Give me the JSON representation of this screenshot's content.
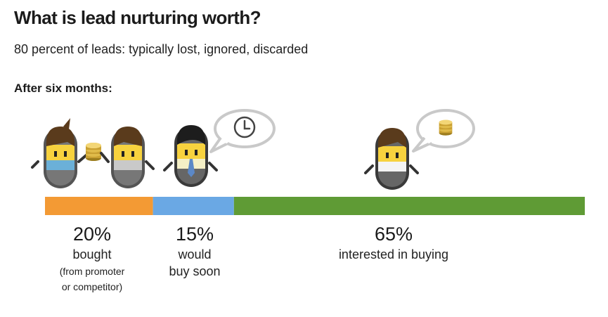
{
  "header": {
    "title": "What is lead nurturing worth?",
    "subtitle": "80 percent of leads: typically lost, ignored, discarded",
    "section_label": "After six months:"
  },
  "chart_data": {
    "type": "bar",
    "orientation": "horizontal-stacked",
    "categories": [
      "bought",
      "would buy soon",
      "interested in buying"
    ],
    "values": [
      20,
      15,
      65
    ],
    "value_labels": [
      "20%",
      "15%",
      "65%"
    ],
    "label_lines": [
      [
        "bought"
      ],
      [
        "would",
        "buy soon"
      ],
      [
        "interested in buying"
      ]
    ],
    "sub_label_lines": [
      [
        "(from promoter",
        "or competitor)"
      ],
      [],
      []
    ],
    "colors": [
      "#F39A34",
      "#6AA8E4",
      "#5F9B35"
    ],
    "unit": "%"
  }
}
